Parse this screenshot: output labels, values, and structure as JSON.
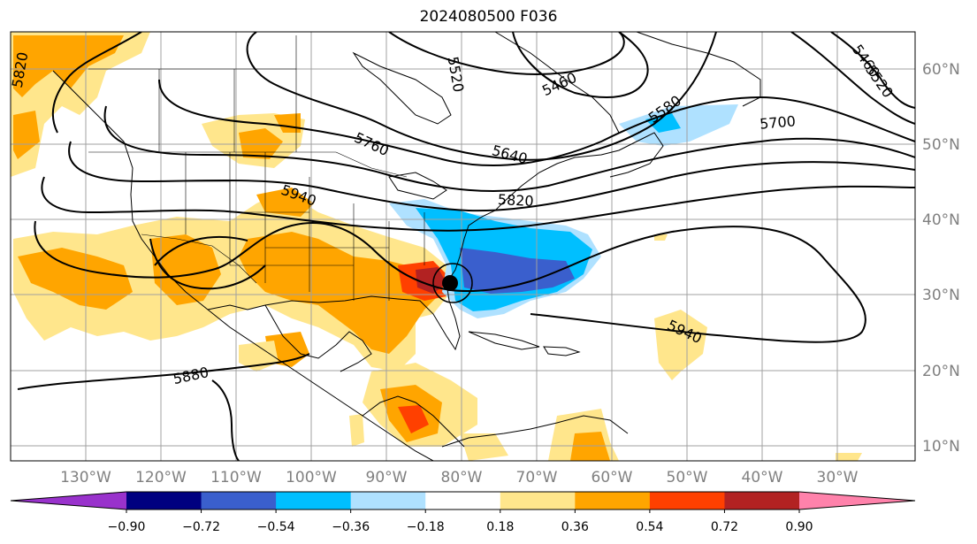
{
  "title": "2024080500 F036",
  "longitude_labels": [
    "130°W",
    "120°W",
    "110°W",
    "100°W",
    "90°W",
    "80°W",
    "70°W",
    "60°W",
    "50°W",
    "40°W",
    "30°W"
  ],
  "latitude_labels": [
    "60°N",
    "50°N",
    "40°N",
    "30°N",
    "20°N",
    "10°N"
  ],
  "contour_labels": [
    "5820",
    "5520",
    "5460",
    "5580",
    "5460",
    "5520",
    "5700",
    "5760",
    "5640",
    "5940",
    "5820",
    "5880",
    "5940"
  ],
  "colorbar": {
    "tick_labels": [
      "−0.90",
      "−0.72",
      "−0.54",
      "−0.36",
      "−0.18",
      "0.18",
      "0.36",
      "0.54",
      "0.72",
      "0.90"
    ],
    "colors": [
      "#9932cc",
      "#000080",
      "#3a5fcd",
      "#00bfff",
      "#afe1ff",
      "#ffffff",
      "#ffe68c",
      "#ffa500",
      "#ff4000",
      "#b22222",
      "#ff82ab"
    ]
  },
  "marker": "storm-center"
}
